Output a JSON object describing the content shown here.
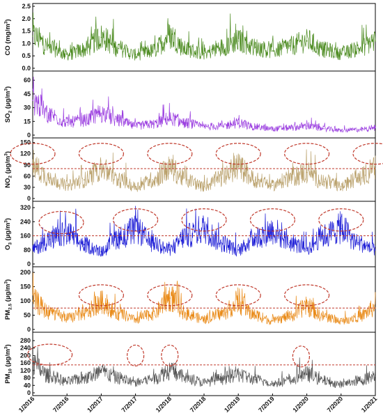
{
  "chart_data": {
    "type": "line",
    "x_tick_labels": [
      "1/2016",
      "7/2016",
      "1/2017",
      "7/2017",
      "1/2018",
      "7/2018",
      "1/2019",
      "7/2019",
      "1/2020",
      "7/2020",
      "1/2021"
    ],
    "x_range": [
      "1/2016",
      "1/2021"
    ],
    "panels": [
      {
        "id": "co",
        "ylabel": "CO (mg/m³)",
        "ylabel_base": "CO (mg/m",
        "ylabel_sup": "3",
        "ylabel_end": ")",
        "ylim": [
          0,
          2.5
        ],
        "yticks": [
          "0.0",
          "0.5",
          "1.0",
          "1.5",
          "2.0",
          "2.5"
        ],
        "color": "#4a8a1e",
        "series": [
          {
            "x": "1/2016",
            "y": 1.3
          },
          {
            "x": "4/2016",
            "y": 0.85
          },
          {
            "x": "7/2016",
            "y": 0.55
          },
          {
            "x": "10/2016",
            "y": 0.75
          },
          {
            "x": "1/2017",
            "y": 1.25
          },
          {
            "x": "4/2017",
            "y": 0.8
          },
          {
            "x": "7/2017",
            "y": 0.55
          },
          {
            "x": "10/2017",
            "y": 0.7
          },
          {
            "x": "1/2018",
            "y": 1.3
          },
          {
            "x": "4/2018",
            "y": 0.75
          },
          {
            "x": "7/2018",
            "y": 0.6
          },
          {
            "x": "10/2018",
            "y": 0.85
          },
          {
            "x": "1/2019",
            "y": 1.1
          },
          {
            "x": "4/2019",
            "y": 0.85
          },
          {
            "x": "7/2019",
            "y": 0.7
          },
          {
            "x": "10/2019",
            "y": 0.9
          },
          {
            "x": "1/2020",
            "y": 1.1
          },
          {
            "x": "4/2020",
            "y": 0.75
          },
          {
            "x": "7/2020",
            "y": 0.6
          },
          {
            "x": "10/2020",
            "y": 0.8
          },
          {
            "x": "1/2021",
            "y": 1.1
          }
        ],
        "threshold": null,
        "highlight_regions": []
      },
      {
        "id": "so2",
        "ylabel": "SO₂ (µg/m³)",
        "ylabel_base": "SO",
        "ylabel_sub": "2",
        "ylabel_mid": " (µg/m",
        "ylabel_sup": "3",
        "ylabel_end": ")",
        "ylim": [
          0,
          67
        ],
        "yticks": [
          "0",
          "15",
          "30",
          "45",
          "60"
        ],
        "color": "#9b3fe0",
        "series": [
          {
            "x": "1/2016",
            "y": 38
          },
          {
            "x": "4/2016",
            "y": 22
          },
          {
            "x": "7/2016",
            "y": 14
          },
          {
            "x": "10/2016",
            "y": 16
          },
          {
            "x": "1/2017",
            "y": 24
          },
          {
            "x": "4/2017",
            "y": 16
          },
          {
            "x": "7/2017",
            "y": 10
          },
          {
            "x": "10/2017",
            "y": 12
          },
          {
            "x": "1/2018",
            "y": 18
          },
          {
            "x": "4/2018",
            "y": 13
          },
          {
            "x": "7/2018",
            "y": 9
          },
          {
            "x": "10/2018",
            "y": 10
          },
          {
            "x": "1/2019",
            "y": 13
          },
          {
            "x": "4/2019",
            "y": 9
          },
          {
            "x": "7/2019",
            "y": 7
          },
          {
            "x": "10/2019",
            "y": 8
          },
          {
            "x": "1/2020",
            "y": 10
          },
          {
            "x": "4/2020",
            "y": 7
          },
          {
            "x": "7/2020",
            "y": 5
          },
          {
            "x": "10/2020",
            "y": 6
          },
          {
            "x": "1/2021",
            "y": 8
          }
        ],
        "threshold": null,
        "highlight_regions": []
      },
      {
        "id": "no2",
        "ylabel": "NO₂ (µg/m³)",
        "ylabel_base": "NO",
        "ylabel_sub": "2",
        "ylabel_mid": " (µg/m",
        "ylabel_sup": "3",
        "ylabel_end": ")",
        "ylim": [
          0,
          155
        ],
        "yticks": [
          "0",
          "30",
          "60",
          "90",
          "120",
          "150"
        ],
        "color": "#b9a06a",
        "series": [
          {
            "x": "1/2016",
            "y": 85
          },
          {
            "x": "4/2016",
            "y": 55
          },
          {
            "x": "7/2016",
            "y": 35
          },
          {
            "x": "10/2016",
            "y": 50
          },
          {
            "x": "1/2017",
            "y": 80
          },
          {
            "x": "4/2017",
            "y": 50
          },
          {
            "x": "7/2017",
            "y": 32
          },
          {
            "x": "10/2017",
            "y": 50
          },
          {
            "x": "1/2018",
            "y": 80
          },
          {
            "x": "4/2018",
            "y": 50
          },
          {
            "x": "7/2018",
            "y": 32
          },
          {
            "x": "10/2018",
            "y": 55
          },
          {
            "x": "1/2019",
            "y": 85
          },
          {
            "x": "4/2019",
            "y": 50
          },
          {
            "x": "7/2019",
            "y": 35
          },
          {
            "x": "10/2019",
            "y": 55
          },
          {
            "x": "1/2020",
            "y": 70
          },
          {
            "x": "4/2020",
            "y": 45
          },
          {
            "x": "7/2020",
            "y": 32
          },
          {
            "x": "10/2020",
            "y": 55
          },
          {
            "x": "1/2021",
            "y": 80
          }
        ],
        "threshold": 80,
        "highlight_regions": [
          {
            "x_center": "1/2016",
            "y_center": 120
          },
          {
            "x_center": "1/2017",
            "y_center": 120
          },
          {
            "x_center": "1/2018",
            "y_center": 120
          },
          {
            "x_center": "1/2019",
            "y_center": 120
          },
          {
            "x_center": "1/2020",
            "y_center": 120
          },
          {
            "x_center": "1/2021",
            "y_center": 120
          }
        ]
      },
      {
        "id": "o3",
        "ylabel": "O₃ (µg/m³)",
        "ylabel_base": "O",
        "ylabel_sub": "3",
        "ylabel_mid": " (µg/m",
        "ylabel_sup": "3",
        "ylabel_end": ")",
        "ylim": [
          0,
          340
        ],
        "yticks": [
          "0",
          "80",
          "160",
          "240",
          "320"
        ],
        "color": "#1a1ad6",
        "series": [
          {
            "x": "1/2016",
            "y": 90
          },
          {
            "x": "4/2016",
            "y": 140
          },
          {
            "x": "7/2016",
            "y": 170
          },
          {
            "x": "10/2016",
            "y": 110
          },
          {
            "x": "1/2017",
            "y": 70
          },
          {
            "x": "4/2017",
            "y": 150
          },
          {
            "x": "7/2017",
            "y": 190
          },
          {
            "x": "10/2017",
            "y": 120
          },
          {
            "x": "1/2018",
            "y": 80
          },
          {
            "x": "4/2018",
            "y": 160
          },
          {
            "x": "7/2018",
            "y": 200
          },
          {
            "x": "10/2018",
            "y": 120
          },
          {
            "x": "1/2019",
            "y": 80
          },
          {
            "x": "4/2019",
            "y": 150
          },
          {
            "x": "7/2019",
            "y": 190
          },
          {
            "x": "10/2019",
            "y": 120
          },
          {
            "x": "1/2020",
            "y": 90
          },
          {
            "x": "4/2020",
            "y": 160
          },
          {
            "x": "7/2020",
            "y": 200
          },
          {
            "x": "10/2020",
            "y": 120
          },
          {
            "x": "1/2021",
            "y": 80
          }
        ],
        "threshold": 160,
        "highlight_regions": [
          {
            "x_center": "6/2016",
            "y_center": 235
          },
          {
            "x_center": "7/2017",
            "y_center": 250
          },
          {
            "x_center": "7/2018",
            "y_center": 250
          },
          {
            "x_center": "7/2019",
            "y_center": 250
          },
          {
            "x_center": "7/2020",
            "y_center": 250
          }
        ]
      },
      {
        "id": "pm25",
        "ylabel": "PM₂.₅ (µg/m³)",
        "ylabel_base": "PM",
        "ylabel_sub": "2.5",
        "ylabel_mid": " (µg/m",
        "ylabel_sup": "3",
        "ylabel_end": ")",
        "ylim": [
          0,
          210
        ],
        "yticks": [
          "0",
          "50",
          "100",
          "150",
          "200"
        ],
        "color": "#e98a17",
        "series": [
          {
            "x": "1/2016",
            "y": 100
          },
          {
            "x": "4/2016",
            "y": 60
          },
          {
            "x": "7/2016",
            "y": 40
          },
          {
            "x": "10/2016",
            "y": 55
          },
          {
            "x": "1/2017",
            "y": 95
          },
          {
            "x": "4/2017",
            "y": 55
          },
          {
            "x": "7/2017",
            "y": 35
          },
          {
            "x": "10/2017",
            "y": 55
          },
          {
            "x": "1/2018",
            "y": 110
          },
          {
            "x": "4/2018",
            "y": 55
          },
          {
            "x": "7/2018",
            "y": 35
          },
          {
            "x": "10/2018",
            "y": 55
          },
          {
            "x": "1/2019",
            "y": 90
          },
          {
            "x": "4/2019",
            "y": 50
          },
          {
            "x": "7/2019",
            "y": 30
          },
          {
            "x": "10/2019",
            "y": 45
          },
          {
            "x": "1/2020",
            "y": 80
          },
          {
            "x": "4/2020",
            "y": 45
          },
          {
            "x": "7/2020",
            "y": 30
          },
          {
            "x": "10/2020",
            "y": 45
          },
          {
            "x": "1/2021",
            "y": 75
          }
        ],
        "threshold": 75,
        "highlight_regions": [
          {
            "x_center": "1/2017",
            "y_center": 120
          },
          {
            "x_center": "1/2018",
            "y_center": 120
          },
          {
            "x_center": "1/2019",
            "y_center": 120
          },
          {
            "x_center": "1/2020",
            "y_center": 120
          }
        ]
      },
      {
        "id": "pm10",
        "ylabel": "PM₁₀ (µg/m³)",
        "ylabel_base": "PM",
        "ylabel_sub": "10",
        "ylabel_mid": " (µg/m",
        "ylabel_sup": "3",
        "ylabel_end": ")",
        "ylim": [
          0,
          310
        ],
        "yticks": [
          "0",
          "40",
          "80",
          "120",
          "160",
          "200",
          "240",
          "280"
        ],
        "color": "#555555",
        "series": [
          {
            "x": "1/2016",
            "y": 150
          },
          {
            "x": "4/2016",
            "y": 90
          },
          {
            "x": "7/2016",
            "y": 60
          },
          {
            "x": "10/2016",
            "y": 80
          },
          {
            "x": "1/2017",
            "y": 110
          },
          {
            "x": "4/2017",
            "y": 80
          },
          {
            "x": "7/2017",
            "y": 55
          },
          {
            "x": "10/2017",
            "y": 75
          },
          {
            "x": "1/2018",
            "y": 120
          },
          {
            "x": "4/2018",
            "y": 80
          },
          {
            "x": "7/2018",
            "y": 55
          },
          {
            "x": "10/2018",
            "y": 75
          },
          {
            "x": "1/2019",
            "y": 100
          },
          {
            "x": "4/2019",
            "y": 70
          },
          {
            "x": "7/2019",
            "y": 50
          },
          {
            "x": "10/2019",
            "y": 65
          },
          {
            "x": "1/2020",
            "y": 100
          },
          {
            "x": "4/2020",
            "y": 65
          },
          {
            "x": "7/2020",
            "y": 45
          },
          {
            "x": "10/2020",
            "y": 65
          },
          {
            "x": "1/2021",
            "y": 90
          }
        ],
        "threshold": 150,
        "highlight_regions": [
          {
            "x_center": "4/2016",
            "y_center": 205
          },
          {
            "x_center": "7/2017",
            "y_center": 200
          },
          {
            "x_center": "1/2018",
            "y_center": 200
          },
          {
            "x_center": "12/2019",
            "y_center": 195
          }
        ]
      }
    ]
  }
}
